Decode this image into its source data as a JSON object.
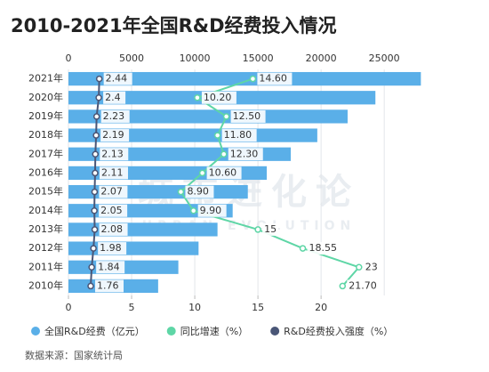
{
  "chart_data": {
    "type": "bar",
    "orientation": "horizontal",
    "title": "2010-2021年全国R&D经费投入情况",
    "categories": [
      "2021年",
      "2020年",
      "2019年",
      "2018年",
      "2017年",
      "2016年",
      "2015年",
      "2014年",
      "2013年",
      "2012年",
      "2011年",
      "2010年"
    ],
    "series": [
      {
        "name": "全国R&D经费（亿元）",
        "color": "#5aafe8",
        "type": "bar",
        "axis": "x",
        "values": [
          27900,
          24300,
          22100,
          19700,
          17600,
          15700,
          14200,
          13000,
          11800,
          10300,
          8700,
          7100
        ]
      },
      {
        "name": "同比增速（%）",
        "color": "#5ed6a6",
        "type": "line",
        "axis": "x2",
        "values": [
          14.6,
          10.2,
          12.5,
          11.8,
          12.3,
          10.6,
          8.9,
          9.9,
          15,
          18.55,
          23,
          21.7
        ],
        "value_labels": [
          "14.60",
          "10.20",
          "12.50",
          "11.80",
          "12.30",
          "10.60",
          "8.90",
          "9.90",
          "15",
          "18.55",
          "23",
          "21.70"
        ]
      },
      {
        "name": "R&D经费投入强度（%）",
        "color": "#4a5677",
        "type": "line",
        "axis": "x2",
        "values": [
          2.44,
          2.4,
          2.23,
          2.19,
          2.13,
          2.11,
          2.07,
          2.05,
          2.08,
          1.98,
          1.84,
          1.76
        ]
      }
    ],
    "xlim": [
      0,
      29000
    ],
    "xticks": [
      0,
      5000,
      10000,
      15000,
      20000,
      25000
    ],
    "x2lim": [
      0,
      29
    ],
    "x2ticks": [
      0,
      5,
      10,
      15,
      20
    ],
    "grid": true,
    "watermark": "城市进化论",
    "watermark_sub": "URBAN EVOLUTION",
    "source": "数据来源：国家统计局"
  }
}
